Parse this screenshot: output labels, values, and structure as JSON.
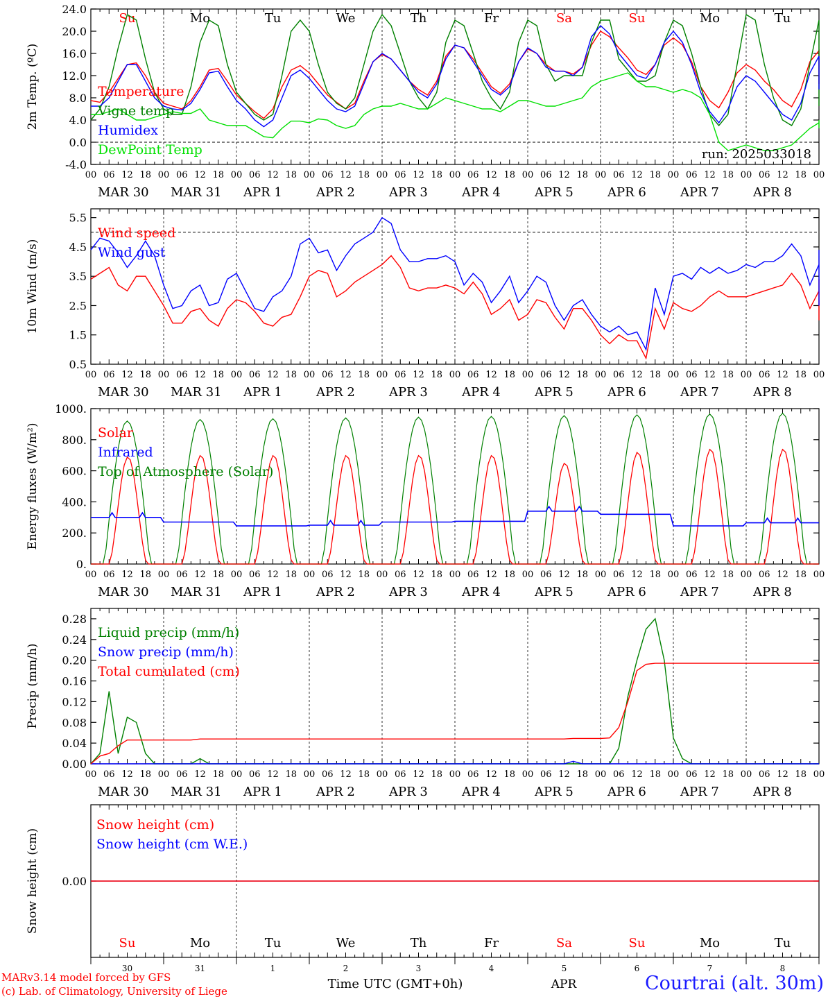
{
  "run_label": "run: 2025033018",
  "footer": {
    "credit_line1": "MARv3.14 model forced by GFS",
    "credit_line2": "(c) Lab. of Climatology, University of Liege",
    "time_axis_label": "Time UTC (GMT+0h)",
    "month_label": "APR",
    "station": "Courtrai (alt. 30m)"
  },
  "day_names": [
    "Su",
    "Mo",
    "Tu",
    "We",
    "Th",
    "Fr",
    "Sa",
    "Su",
    "Mo",
    "Tu"
  ],
  "weekend_flags": [
    true,
    false,
    false,
    false,
    false,
    false,
    true,
    true,
    false,
    false
  ],
  "day_numbers": [
    "30",
    "31",
    "1",
    "2",
    "3",
    "4",
    "5",
    "6",
    "7",
    "8"
  ],
  "date_labels": [
    "MAR 30",
    "MAR 31",
    "APR  1",
    "APR  2",
    "APR  3",
    "APR  4",
    "APR  5",
    "APR  6",
    "APR  7",
    "APR  8"
  ],
  "hour_ticks": [
    "00",
    "06",
    "12",
    "18"
  ],
  "colors": {
    "red": "#ff0000",
    "blue": "#0000ff",
    "green": "#008000",
    "lightgreen": "#00e000",
    "axis": "#000000"
  },
  "chart_data": [
    {
      "id": "temperature",
      "type": "line",
      "ylabel": "2m Temp. (ºC)",
      "ylim": [
        -4,
        24
      ],
      "yticks": [
        "-4.0",
        "0.0",
        "4.0",
        "8.0",
        "12.0",
        "16.0",
        "20.0",
        "24.0"
      ],
      "reference_line": 0,
      "legend": [
        "Temperature",
        "Vigne temp",
        "Humidex",
        "DewPoint Temp"
      ],
      "x_hours_step": 3,
      "series": [
        {
          "name": "Temperature",
          "color": "red",
          "values": [
            7.5,
            7.2,
            9,
            11.5,
            14,
            14.3,
            12,
            9,
            7,
            6.5,
            6,
            7.5,
            10,
            13,
            13.3,
            11,
            8.5,
            7,
            5.5,
            4.3,
            6,
            10,
            13,
            13.8,
            12.5,
            10.5,
            8.5,
            7.2,
            6,
            7,
            11,
            14.5,
            15.8,
            15,
            13,
            11,
            9.5,
            8.5,
            11,
            15.5,
            17.5,
            17,
            15,
            12.5,
            10,
            8.8,
            10.5,
            14.5,
            16.8,
            16,
            14,
            12.8,
            12.8,
            12.3,
            13.5,
            17.5,
            20,
            19,
            17,
            15.2,
            13,
            12.2,
            14,
            17.5,
            18.8,
            17.5,
            14.5,
            10,
            7.5,
            6.2,
            9,
            12.5,
            14,
            13,
            11,
            9.5,
            7.5,
            6.4,
            9.5,
            14.5,
            16.5,
            15.5,
            13,
            11,
            10.5
          ]
        },
        {
          "name": "Vigne temp",
          "color": "green",
          "values": [
            4,
            6,
            10,
            17,
            23,
            22,
            15,
            9,
            6,
            5,
            5,
            10,
            18,
            22,
            21,
            14,
            9,
            7,
            5,
            4,
            5,
            12,
            20,
            22,
            20,
            14,
            9,
            7,
            6,
            8,
            14,
            20,
            23,
            21,
            16,
            11,
            8,
            6,
            9,
            18,
            22,
            21,
            16,
            11,
            8,
            6,
            9,
            18,
            22,
            21,
            14,
            11,
            12,
            12,
            12,
            18,
            22,
            22,
            15,
            13,
            11,
            11,
            12,
            18,
            22,
            21,
            16,
            10,
            5,
            3,
            5,
            14,
            23,
            22,
            14,
            8,
            4,
            3,
            6,
            14,
            22,
            21,
            13,
            9,
            6.5
          ]
        },
        {
          "name": "Humidex",
          "color": "blue",
          "values": [
            6.5,
            6.5,
            8,
            11,
            14,
            14,
            11,
            8,
            6.5,
            6,
            5.8,
            7,
            9.5,
            12.5,
            12.8,
            10,
            7.5,
            6,
            4,
            2.8,
            4,
            8,
            12,
            13,
            11.5,
            9.5,
            7.5,
            6,
            5.5,
            6.5,
            10.5,
            14.5,
            16,
            15,
            13,
            11,
            9,
            8,
            10.5,
            15,
            17.5,
            17,
            14.5,
            12,
            9.5,
            8.5,
            10,
            14.5,
            17,
            16,
            13.5,
            12.8,
            12.8,
            12,
            13.5,
            19,
            21,
            19.5,
            16,
            14,
            12,
            11.5,
            14,
            18,
            20,
            18,
            14,
            9,
            5.5,
            3.5,
            6,
            10,
            12,
            11,
            9,
            7,
            5,
            4,
            7,
            12.5,
            15.5,
            14.5,
            12,
            10.5,
            9.5
          ]
        },
        {
          "name": "DewPoint Temp",
          "color": "lightgreen",
          "values": [
            5,
            5,
            5.5,
            6,
            5,
            4,
            4,
            4.5,
            5,
            5.5,
            5.2,
            5.2,
            6,
            4,
            3.5,
            3,
            3,
            3,
            2,
            1,
            0.8,
            2.5,
            3.8,
            3.8,
            3.5,
            4.2,
            4,
            3,
            2.5,
            3,
            5,
            6,
            6.5,
            6.5,
            7,
            6.5,
            6,
            6,
            7,
            8,
            7.5,
            7,
            6.5,
            6,
            6,
            5.5,
            6.5,
            7.5,
            7.5,
            7,
            6.5,
            6.5,
            7,
            7.5,
            8,
            10,
            11,
            11.5,
            12,
            12.5,
            11,
            10,
            10,
            9.5,
            9,
            9.5,
            9,
            8,
            5,
            0,
            -1.5,
            -1,
            -0.5,
            -1,
            -1.5,
            -1.5,
            -1,
            -0.5,
            1,
            2.5,
            3.5,
            4,
            3.5,
            3,
            2.5
          ]
        }
      ]
    },
    {
      "id": "wind",
      "type": "line",
      "ylabel": "10m Wind (m/s)",
      "ylim": [
        0.5,
        5.8
      ],
      "yticks": [
        "0.5",
        "1.5",
        "2.5",
        "3.5",
        "4.5",
        "5.5"
      ],
      "reference_line": 5,
      "legend": [
        "Wind speed",
        "Wind gust"
      ],
      "x_hours_step": 3,
      "series": [
        {
          "name": "Wind speed",
          "color": "red",
          "values": [
            3.4,
            3.6,
            3.8,
            3.2,
            3.0,
            3.5,
            3.5,
            3.0,
            2.5,
            1.9,
            1.9,
            2.3,
            2.4,
            2.0,
            1.8,
            2.4,
            2.7,
            2.6,
            2.3,
            1.9,
            1.8,
            2.1,
            2.2,
            2.8,
            3.5,
            3.7,
            3.6,
            2.8,
            3.0,
            3.3,
            3.5,
            3.7,
            3.9,
            4.2,
            3.8,
            3.1,
            3.0,
            3.1,
            3.1,
            3.2,
            3.1,
            2.9,
            3.3,
            2.9,
            2.2,
            2.4,
            2.7,
            2.0,
            2.2,
            2.7,
            2.6,
            2.1,
            1.7,
            2.4,
            2.4,
            2.0,
            1.5,
            1.2,
            1.5,
            1.3,
            1.3,
            0.7,
            2.4,
            1.7,
            2.6,
            2.4,
            2.3,
            2.5,
            2.8,
            3.0,
            2.8,
            2.8,
            2.8,
            2.9,
            3.0,
            3.1,
            3.2,
            3.6,
            3.2,
            2.4,
            3.0,
            3.0,
            3.1,
            3.1,
            3.4,
            3.0,
            2.3,
            2.1,
            2.0
          ]
        },
        {
          "name": "Wind gust",
          "color": "blue",
          "values": [
            4.4,
            4.8,
            4.7,
            4.3,
            3.8,
            4.2,
            4.7,
            4.2,
            3.2,
            2.4,
            2.5,
            3.0,
            3.2,
            2.5,
            2.6,
            3.4,
            3.6,
            3.0,
            2.4,
            2.3,
            2.8,
            3.0,
            3.5,
            4.6,
            4.8,
            4.3,
            4.4,
            3.7,
            4.2,
            4.6,
            4.8,
            5.0,
            5.5,
            5.3,
            4.4,
            4.0,
            4.0,
            4.1,
            4.1,
            4.2,
            4.0,
            3.2,
            3.6,
            3.3,
            2.6,
            3.0,
            3.5,
            2.6,
            3.0,
            3.5,
            3.3,
            2.5,
            2.0,
            2.5,
            2.7,
            2.2,
            1.8,
            1.6,
            1.8,
            1.5,
            1.6,
            1.0,
            3.1,
            2.2,
            3.5,
            3.6,
            3.4,
            3.8,
            3.6,
            3.8,
            3.6,
            3.7,
            3.9,
            3.8,
            4.0,
            4.0,
            4.2,
            4.6,
            4.2,
            3.2,
            3.9,
            3.8,
            3.9,
            3.9,
            4.4,
            3.9,
            2.8,
            2.7,
            2.5
          ]
        }
      ]
    },
    {
      "id": "energy",
      "type": "line",
      "ylabel": "Energy fluxes (W/m²)",
      "ylim": [
        0,
        1000
      ],
      "yticks": [
        "0.",
        "200.",
        "400.",
        "600.",
        "800.",
        "1000."
      ],
      "reference_line": null,
      "legend": [
        "Solar",
        "Infrared",
        "Top of Atmosphere (Solar)"
      ],
      "daily": {
        "toa_peaks": [
          920,
          930,
          935,
          940,
          945,
          950,
          955,
          960,
          965,
          970
        ],
        "solar_peaks": [
          690,
          700,
          700,
          700,
          700,
          700,
          650,
          720,
          740,
          740
        ],
        "infrared_levels": [
          300,
          270,
          245,
          250,
          270,
          275,
          340,
          320,
          245,
          265
        ]
      },
      "series": [
        {
          "name": "Solar",
          "color": "red"
        },
        {
          "name": "Infrared",
          "color": "blue"
        },
        {
          "name": "Top of Atmosphere (Solar)",
          "color": "green"
        }
      ]
    },
    {
      "id": "precip",
      "type": "line",
      "ylabel": "Precip (mm/h)",
      "ylim": [
        0,
        0.3
      ],
      "yticks": [
        "0.00",
        "0.04",
        "0.08",
        "0.12",
        "0.16",
        "0.20",
        "0.24",
        "0.28"
      ],
      "reference_line": null,
      "legend": [
        "Liquid precip (mm/h)",
        "Snow precip (mm/h)",
        "Total cumulated (cm)"
      ],
      "x_hours_step": 3,
      "series": [
        {
          "name": "Liquid precip (mm/h)",
          "color": "green",
          "values": [
            0,
            0.02,
            0.14,
            0.02,
            0.09,
            0.08,
            0.02,
            0,
            0,
            0,
            0,
            0,
            0.01,
            0,
            0,
            0,
            0,
            0,
            0,
            0,
            0,
            0,
            0,
            0,
            0,
            0,
            0,
            0,
            0,
            0,
            0,
            0,
            0,
            0,
            0,
            0,
            0,
            0,
            0,
            0,
            0,
            0,
            0,
            0,
            0,
            0,
            0,
            0,
            0,
            0,
            0,
            0,
            0,
            0,
            0,
            0,
            0,
            0,
            0.03,
            0.13,
            0.2,
            0.26,
            0.28,
            0.2,
            0.05,
            0.01,
            0,
            0,
            0,
            0,
            0,
            0,
            0,
            0,
            0,
            0,
            0,
            0,
            0,
            0,
            0,
            0,
            0,
            0,
            0,
            0,
            0,
            0,
            0
          ]
        },
        {
          "name": "Snow precip (mm/h)",
          "color": "blue",
          "values": [
            0,
            0,
            0,
            0,
            0,
            0,
            0,
            0,
            0,
            0,
            0,
            0,
            0,
            0,
            0,
            0,
            0,
            0,
            0,
            0,
            0,
            0,
            0,
            0,
            0,
            0,
            0,
            0,
            0,
            0,
            0,
            0,
            0,
            0,
            0,
            0,
            0,
            0,
            0,
            0,
            0,
            0,
            0,
            0,
            0,
            0,
            0,
            0,
            0,
            0,
            0,
            0,
            0,
            0.005,
            0,
            0,
            0,
            0,
            0,
            0,
            0,
            0,
            0,
            0,
            0,
            0,
            0,
            0,
            0,
            0,
            0,
            0,
            0,
            0,
            0,
            0,
            0,
            0,
            0,
            0,
            0,
            0,
            0,
            0,
            0,
            0,
            0,
            0,
            0
          ]
        },
        {
          "name": "Total cumulated (cm)",
          "color": "red",
          "values": [
            0,
            0.015,
            0.02,
            0.035,
            0.046,
            0.046,
            0.046,
            0.046,
            0.046,
            0.046,
            0.046,
            0.046,
            0.048,
            0.048,
            0.048,
            0.048,
            0.048,
            0.048,
            0.048,
            0.048,
            0.048,
            0.048,
            0.048,
            0.048,
            0.048,
            0.048,
            0.048,
            0.048,
            0.048,
            0.048,
            0.048,
            0.048,
            0.048,
            0.048,
            0.048,
            0.048,
            0.048,
            0.048,
            0.048,
            0.048,
            0.048,
            0.048,
            0.048,
            0.048,
            0.048,
            0.048,
            0.048,
            0.048,
            0.048,
            0.048,
            0.048,
            0.048,
            0.048,
            0.049,
            0.049,
            0.049,
            0.049,
            0.05,
            0.07,
            0.12,
            0.18,
            0.192,
            0.194,
            0.194,
            0.194,
            0.194,
            0.194,
            0.194,
            0.194,
            0.194,
            0.194,
            0.194,
            0.194,
            0.194,
            0.194,
            0.194,
            0.194,
            0.194,
            0.194,
            0.194,
            0.194,
            0.194,
            0.194,
            0.194,
            0.194,
            0.194,
            0.194,
            0.194,
            0.194
          ]
        }
      ]
    },
    {
      "id": "snow",
      "type": "line",
      "ylabel": "Snow height (cm)",
      "ylim": [
        -1,
        1
      ],
      "yticks": [
        "0.00"
      ],
      "reference_line": null,
      "legend": [
        "Snow height (cm)",
        "Snow height (cm W.E.)"
      ],
      "series": [
        {
          "name": "Snow height (cm)",
          "color": "red",
          "constant": 0
        },
        {
          "name": "Snow height (cm W.E.)",
          "color": "blue",
          "constant": 0
        }
      ]
    }
  ]
}
